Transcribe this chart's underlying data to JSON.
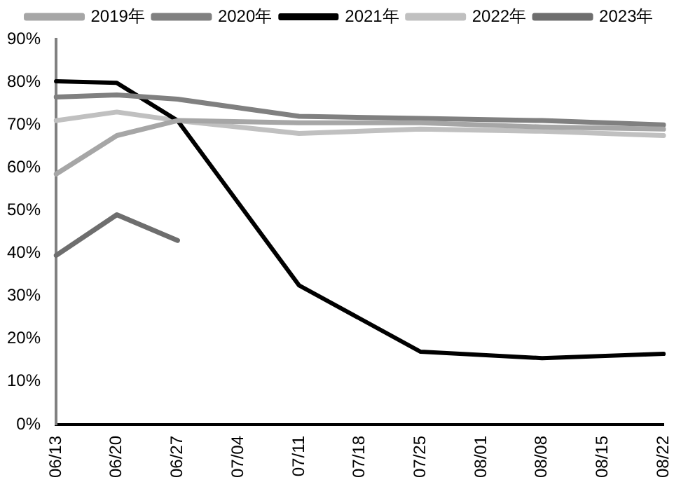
{
  "chart_data": {
    "type": "line",
    "categories": [
      "06/13",
      "06/20",
      "06/27",
      "07/04",
      "07/11",
      "07/18",
      "07/25",
      "08/01",
      "08/08",
      "08/15",
      "08/22"
    ],
    "series": [
      {
        "name": "2019年",
        "color": "#a6a6a6",
        "values": [
          58.5,
          67.5,
          71,
          null,
          70.5,
          null,
          70.5,
          null,
          69.5,
          null,
          69
        ]
      },
      {
        "name": "2020年",
        "color": "#808080",
        "values": [
          76.5,
          77,
          76,
          null,
          72,
          null,
          71.5,
          null,
          71,
          null,
          70
        ]
      },
      {
        "name": "2021年",
        "color": "#000000",
        "values": [
          80.2,
          79.8,
          71,
          null,
          32.5,
          null,
          17,
          null,
          15.5,
          null,
          16.5
        ]
      },
      {
        "name": "2022年",
        "color": "#c0c0c0",
        "values": [
          71,
          73,
          71,
          null,
          68,
          null,
          69,
          null,
          68.5,
          null,
          67.5
        ]
      },
      {
        "name": "2023年",
        "color": "#6e6e6e",
        "values": [
          39.5,
          49,
          43,
          null,
          null,
          null,
          null,
          null,
          null,
          null,
          null
        ]
      }
    ],
    "ylim": [
      0,
      90
    ],
    "yticks": [
      {
        "value": 0,
        "label": "0%"
      },
      {
        "value": 10,
        "label": "10%"
      },
      {
        "value": 20,
        "label": "20%"
      },
      {
        "value": 30,
        "label": "30%"
      },
      {
        "value": 40,
        "label": "40%"
      },
      {
        "value": 50,
        "label": "50%"
      },
      {
        "value": 60,
        "label": "60%"
      },
      {
        "value": 70,
        "label": "70%"
      },
      {
        "value": 80,
        "label": "80%"
      },
      {
        "value": 90,
        "label": "90%"
      }
    ],
    "grid": false,
    "legend": "top",
    "marker": "none",
    "line_style": "solid"
  }
}
